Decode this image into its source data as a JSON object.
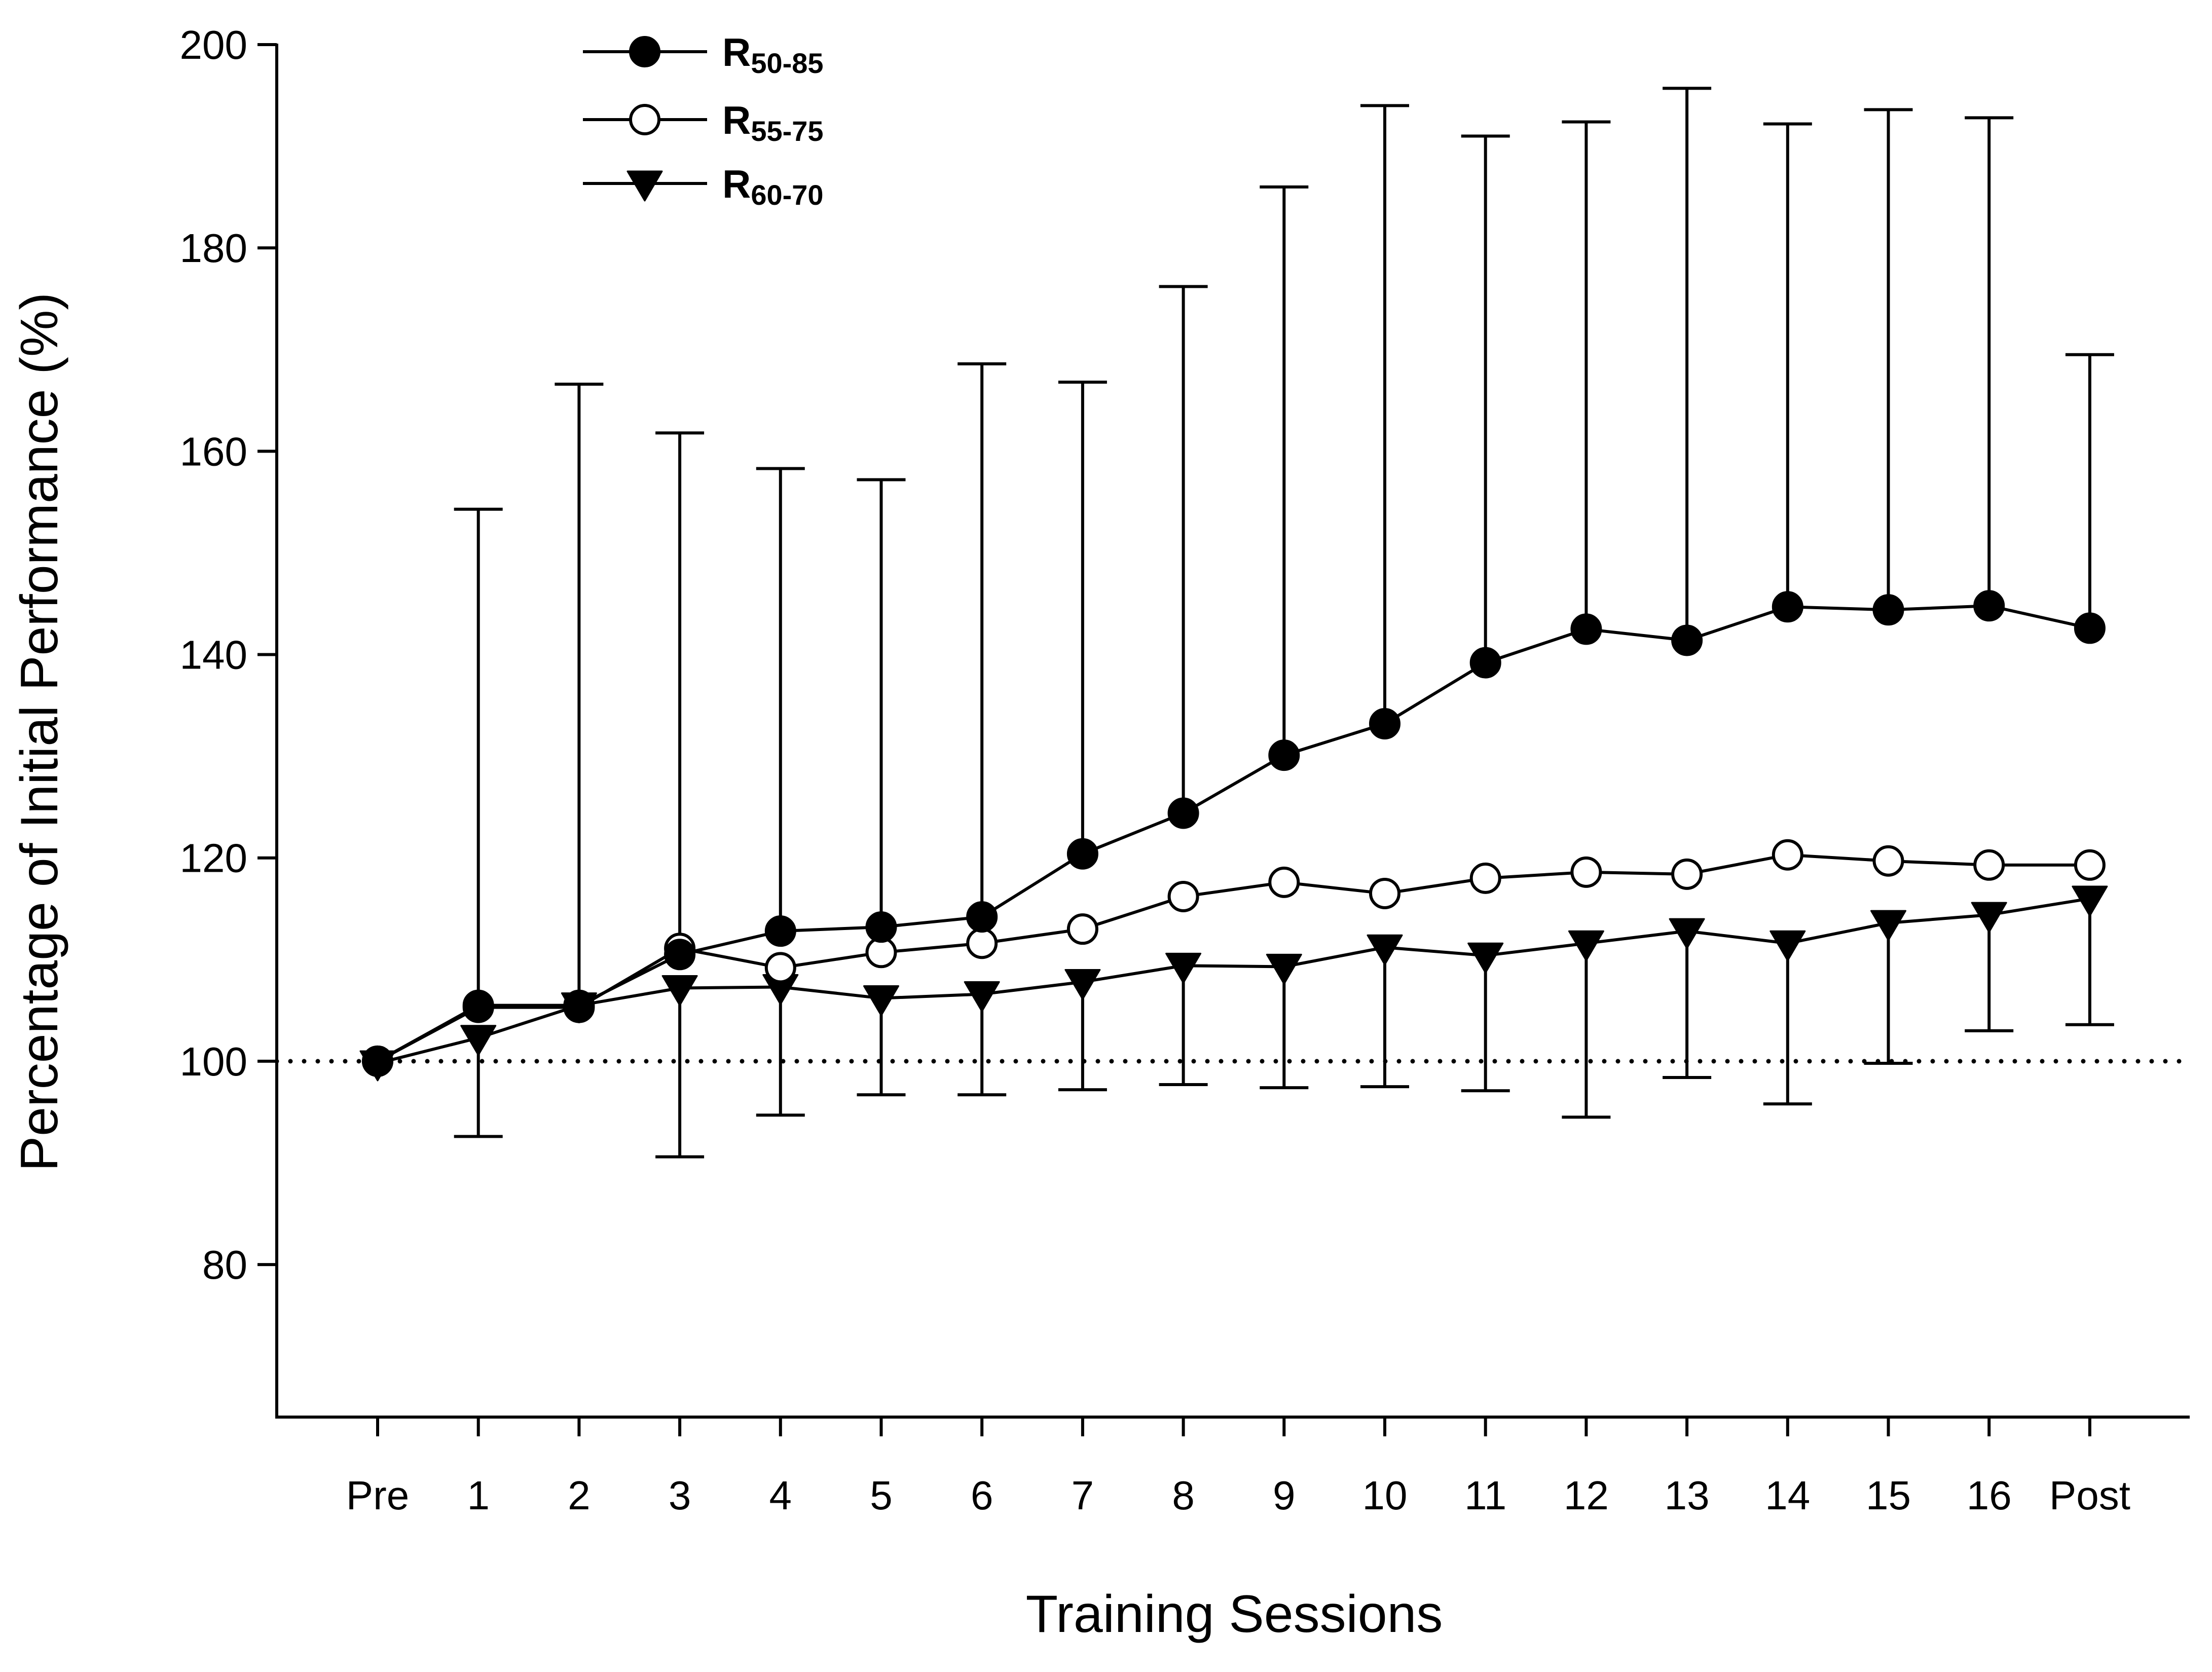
{
  "chart_data": {
    "type": "line",
    "title": "",
    "xlabel": "Training Sessions",
    "ylabel": "Percentage of Initial Performance (%)",
    "categories": [
      "Pre",
      "1",
      "2",
      "3",
      "4",
      "5",
      "6",
      "7",
      "8",
      "9",
      "10",
      "11",
      "12",
      "13",
      "14",
      "15",
      "16",
      "Post"
    ],
    "ylim": [
      65,
      200
    ],
    "yticks": [
      80,
      100,
      120,
      140,
      160,
      180,
      200
    ],
    "reference_line": {
      "y": 100,
      "style": "dotted"
    },
    "legend_position": "top-left",
    "series": [
      {
        "name": "R50-85",
        "label_main": "R",
        "label_sub": "50-85",
        "marker": "filled-circle",
        "error_direction": "up",
        "values": [
          100,
          105.5,
          105.5,
          110.5,
          112.8,
          113.2,
          114.2,
          120.4,
          124.4,
          130.1,
          133.2,
          139.2,
          142.5,
          141.4,
          144.7,
          144.4,
          144.8,
          142.6
        ],
        "error_bound": [
          null,
          154.3,
          166.6,
          161.8,
          158.3,
          157.2,
          168.6,
          166.8,
          176.2,
          186.0,
          194.0,
          191.0,
          192.4,
          195.7,
          192.2,
          193.6,
          192.8,
          169.5
        ]
      },
      {
        "name": "R55-75",
        "label_main": "R",
        "label_sub": "55-75",
        "marker": "open-circle",
        "error_direction": "none",
        "values": [
          100,
          105.3,
          105.3,
          111.1,
          109.2,
          110.7,
          111.6,
          113.0,
          116.2,
          117.6,
          116.5,
          118.0,
          118.6,
          118.4,
          120.3,
          119.7,
          119.3,
          119.3
        ],
        "error_bound": []
      },
      {
        "name": "R60-70",
        "label_main": "R",
        "label_sub": "60-70",
        "marker": "filled-triangle-down",
        "error_direction": "down",
        "values": [
          99.8,
          102.3,
          105.5,
          107.2,
          107.3,
          106.2,
          106.6,
          107.8,
          109.4,
          109.3,
          111.2,
          110.4,
          111.6,
          112.8,
          111.6,
          113.6,
          114.4,
          116.0
        ],
        "error_bound": [
          null,
          92.6,
          null,
          90.6,
          94.7,
          96.7,
          96.7,
          97.2,
          97.7,
          97.4,
          97.5,
          97.1,
          94.5,
          98.4,
          95.8,
          99.8,
          103.0,
          103.6
        ]
      }
    ]
  }
}
